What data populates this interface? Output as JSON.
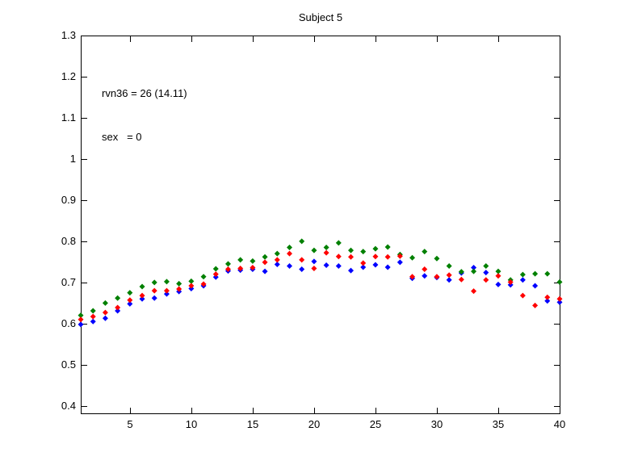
{
  "figure": {
    "background": "#ffffff",
    "axes_color": "#000000"
  },
  "chart_data": {
    "type": "scatter",
    "title": "Subject 5",
    "annotation_lines": [
      "rvn36 = 26 (14.11)",
      "sex   = 0"
    ],
    "marker": "diamond",
    "grid": false,
    "legend": "none",
    "xlim": [
      1,
      40
    ],
    "ylim": [
      0.38,
      1.3
    ],
    "xticks": [
      5,
      10,
      15,
      20,
      25,
      30,
      35,
      40
    ],
    "xtick_labels": [
      "5",
      "10",
      "15",
      "20",
      "25",
      "30",
      "35",
      "40"
    ],
    "yticks": [
      0.4,
      0.5,
      0.6,
      0.7,
      0.8,
      0.9,
      1.0,
      1.1,
      1.2,
      1.3
    ],
    "ytick_labels": [
      "0.4",
      "0.5",
      "0.6",
      "0.7",
      "0.8",
      "0.9",
      "1",
      "1.1",
      "1.2",
      "1.3"
    ],
    "x": [
      1,
      2,
      3,
      4,
      5,
      6,
      7,
      8,
      9,
      10,
      11,
      12,
      13,
      14,
      15,
      16,
      17,
      18,
      19,
      20,
      21,
      22,
      23,
      24,
      25,
      26,
      27,
      28,
      29,
      30,
      31,
      32,
      33,
      34,
      35,
      36,
      37,
      38,
      39,
      40
    ],
    "series": [
      {
        "name": "blue",
        "color": "#0000ff",
        "values": [
          0.598,
          0.605,
          0.613,
          0.631,
          0.648,
          0.66,
          0.662,
          0.672,
          0.678,
          0.685,
          0.692,
          0.713,
          0.728,
          0.73,
          0.732,
          0.727,
          0.744,
          0.74,
          0.732,
          0.751,
          0.742,
          0.74,
          0.729,
          0.737,
          0.743,
          0.737,
          0.749,
          0.71,
          0.716,
          0.712,
          0.706,
          0.723,
          0.736,
          0.724,
          0.695,
          0.694,
          0.706,
          0.692,
          0.655,
          0.652
        ]
      },
      {
        "name": "green",
        "color": "#008000",
        "values": [
          0.62,
          0.631,
          0.65,
          0.662,
          0.675,
          0.69,
          0.7,
          0.702,
          0.697,
          0.703,
          0.714,
          0.733,
          0.745,
          0.755,
          0.752,
          0.762,
          0.77,
          0.785,
          0.8,
          0.778,
          0.785,
          0.796,
          0.778,
          0.775,
          0.782,
          0.786,
          0.768,
          0.76,
          0.775,
          0.758,
          0.74,
          0.726,
          0.727,
          0.74,
          0.727,
          0.706,
          0.719,
          0.721,
          0.721,
          0.701
        ]
      },
      {
        "name": "red",
        "color": "#ff0000",
        "values": [
          0.61,
          0.617,
          0.627,
          0.639,
          0.657,
          0.668,
          0.68,
          0.68,
          0.684,
          0.692,
          0.696,
          0.72,
          0.732,
          0.734,
          0.736,
          0.749,
          0.755,
          0.77,
          0.755,
          0.734,
          0.772,
          0.763,
          0.762,
          0.747,
          0.763,
          0.762,
          0.764,
          0.714,
          0.732,
          0.714,
          0.718,
          0.707,
          0.679,
          0.706,
          0.716,
          0.701,
          0.668,
          0.644,
          0.664,
          0.66
        ]
      }
    ]
  }
}
